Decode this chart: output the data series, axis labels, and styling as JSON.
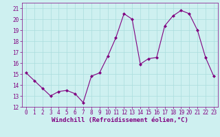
{
  "x": [
    0,
    1,
    2,
    3,
    4,
    5,
    6,
    7,
    8,
    9,
    10,
    11,
    12,
    13,
    14,
    15,
    16,
    17,
    18,
    19,
    20,
    21,
    22,
    23
  ],
  "y": [
    15.1,
    14.4,
    13.7,
    13.0,
    13.4,
    13.5,
    13.2,
    12.4,
    14.8,
    15.1,
    16.6,
    18.3,
    20.5,
    20.0,
    15.9,
    16.4,
    16.5,
    19.4,
    20.3,
    20.8,
    20.5,
    19.0,
    16.5,
    14.8
  ],
  "line_color": "#800080",
  "marker": "D",
  "marker_size": 2,
  "bg_color": "#cef0f0",
  "grid_color": "#aadddd",
  "xlabel": "Windchill (Refroidissement éolien,°C)",
  "xlabel_color": "#800080",
  "ylim": [
    12,
    21.5
  ],
  "yticks": [
    12,
    13,
    14,
    15,
    16,
    17,
    18,
    19,
    20,
    21
  ],
  "xticks": [
    0,
    1,
    2,
    3,
    4,
    5,
    6,
    7,
    8,
    9,
    10,
    11,
    12,
    13,
    14,
    15,
    16,
    17,
    18,
    19,
    20,
    21,
    22,
    23
  ],
  "tick_color": "#800080",
  "tick_fontsize": 5.5,
  "xlabel_fontsize": 6.5,
  "linewidth": 0.8
}
